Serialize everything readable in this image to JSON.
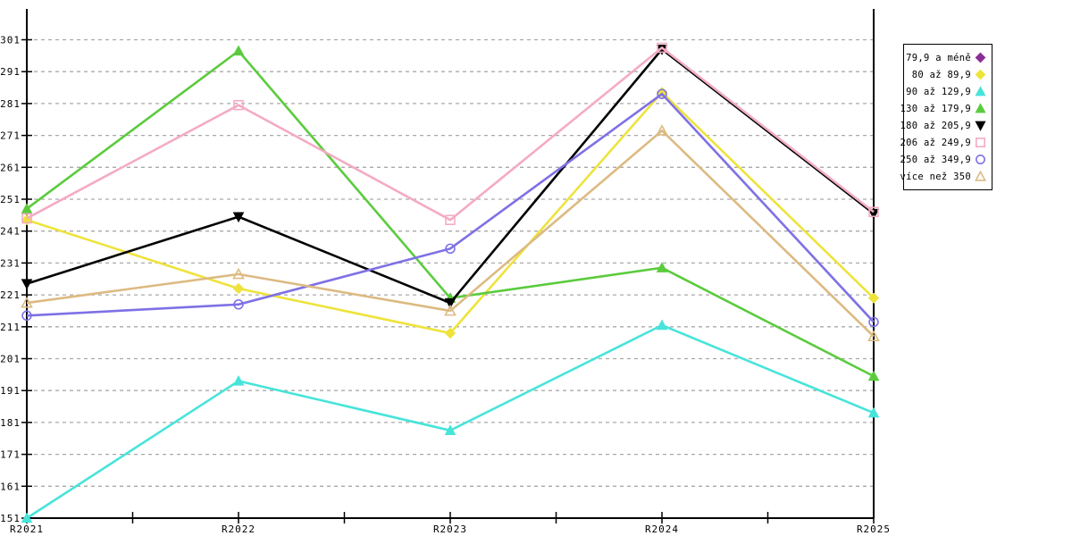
{
  "chart_data": {
    "type": "line",
    "title": "",
    "xlabel": "",
    "ylabel": "",
    "categories": [
      "R2021",
      "R2022",
      "R2023",
      "R2024",
      "R2025"
    ],
    "y_ticks": [
      151,
      161,
      171,
      181,
      191,
      201,
      211,
      221,
      231,
      241,
      251,
      261,
      271,
      281,
      291,
      301
    ],
    "ylim": [
      151,
      311
    ],
    "grid": true,
    "grid_style": "dashed",
    "legend_position": "right-outside",
    "series": [
      {
        "name": "79,9 a méně",
        "color": "#8C2D96",
        "marker": "diamond",
        "filled": true,
        "values": [
          null,
          null,
          null,
          null,
          null
        ]
      },
      {
        "name": "80 až 89,9",
        "color": "#EEE33C",
        "marker": "diamond",
        "filled": true,
        "values": [
          244.5,
          223,
          209,
          284.5,
          220
        ]
      },
      {
        "name": "90 až 129,9",
        "color": "#47E4DA",
        "marker": "triangle-up",
        "filled": true,
        "values": [
          151,
          194,
          178.5,
          211.5,
          184
        ]
      },
      {
        "name": "130 až 179,9",
        "color": "#5BCB3D",
        "marker": "triangle-up",
        "filled": true,
        "values": [
          248,
          297.5,
          220,
          229.5,
          195.5
        ]
      },
      {
        "name": "180 až 205,9",
        "color": "#000000",
        "marker": "triangle-down",
        "filled": true,
        "values": [
          224.5,
          245.5,
          218.5,
          298,
          246.5
        ]
      },
      {
        "name": "206 až 249,9",
        "color": "#F4ABC4",
        "marker": "square",
        "filled": false,
        "values": [
          245,
          280.5,
          244.5,
          298.5,
          247
        ]
      },
      {
        "name": "250 až 349,9",
        "color": "#7E71E5",
        "marker": "circle",
        "filled": false,
        "values": [
          214.5,
          218,
          235.5,
          284,
          212.5
        ]
      },
      {
        "name": "více než 350",
        "color": "#DCBA82",
        "marker": "triangle-up",
        "filled": false,
        "values": [
          218.5,
          227.5,
          216,
          272.5,
          208
        ]
      }
    ]
  },
  "colors": {
    "background": "#FFFFFF",
    "axis": "#000000",
    "grid": "#A9A9A9",
    "legend_border": "#000000"
  }
}
